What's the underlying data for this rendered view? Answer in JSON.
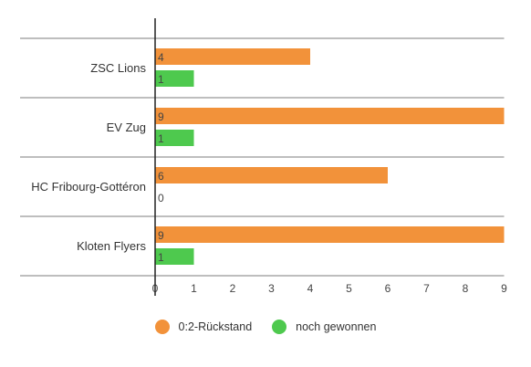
{
  "chart_data": {
    "type": "bar",
    "orientation": "horizontal",
    "categories": [
      "ZSC Lions",
      "EV Zug",
      "HC Fribourg-Gottéron",
      "Kloten Flyers"
    ],
    "series": [
      {
        "name": "0:2-Rückstand",
        "color": "#f2923a",
        "values": [
          4,
          9,
          6,
          9
        ]
      },
      {
        "name": "noch gewonnen",
        "color": "#4ec94e",
        "values": [
          1,
          1,
          0,
          1
        ]
      }
    ],
    "xlim": [
      0,
      9
    ],
    "xticks": [
      "0",
      "1",
      "2",
      "3",
      "4",
      "5",
      "6",
      "7",
      "8",
      "9"
    ],
    "grid": false,
    "legend_position": "bottom"
  }
}
